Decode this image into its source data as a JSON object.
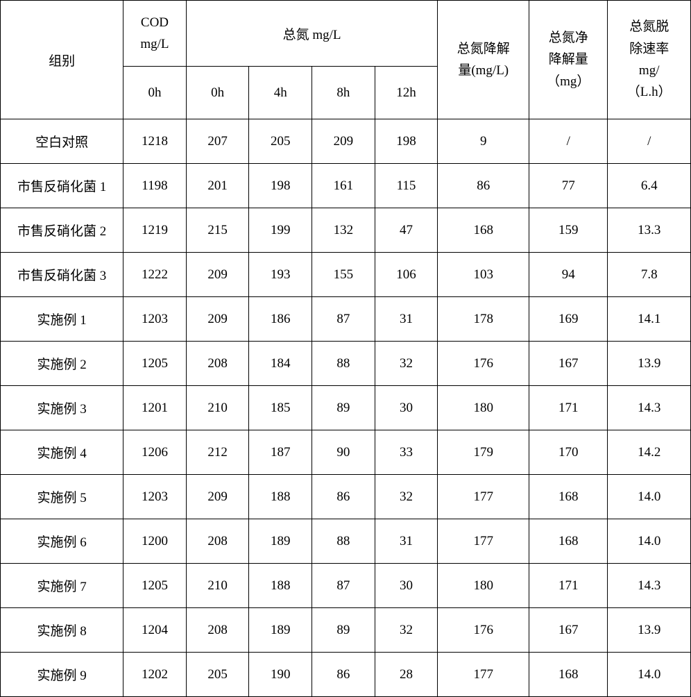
{
  "headers": {
    "group": "组别",
    "cod": "COD\nmg/L",
    "tn": "总氮 mg/L",
    "t0": "0h",
    "t0b": "0h",
    "t4": "4h",
    "t8": "8h",
    "t12": "12h",
    "degradation": "总氮降解\n量(mg/L)",
    "net_degradation": "总氮净\n降解量\n（mg）",
    "removal_rate": "总氮脱\n除速率\nmg/\n（L.h）"
  },
  "rows": [
    {
      "group": "空白对照",
      "cod": "1218",
      "tn0": "207",
      "tn4": "205",
      "tn8": "209",
      "tn12": "198",
      "deg": "9",
      "net": "/",
      "rate": "/"
    },
    {
      "group": "市售反硝化菌 1",
      "cod": "1198",
      "tn0": "201",
      "tn4": "198",
      "tn8": "161",
      "tn12": "115",
      "deg": "86",
      "net": "77",
      "rate": "6.4"
    },
    {
      "group": "市售反硝化菌 2",
      "cod": "1219",
      "tn0": "215",
      "tn4": "199",
      "tn8": "132",
      "tn12": "47",
      "deg": "168",
      "net": "159",
      "rate": "13.3"
    },
    {
      "group": "市售反硝化菌 3",
      "cod": "1222",
      "tn0": "209",
      "tn4": "193",
      "tn8": "155",
      "tn12": "106",
      "deg": "103",
      "net": "94",
      "rate": "7.8"
    },
    {
      "group": "实施例 1",
      "cod": "1203",
      "tn0": "209",
      "tn4": "186",
      "tn8": "87",
      "tn12": "31",
      "deg": "178",
      "net": "169",
      "rate": "14.1"
    },
    {
      "group": "实施例 2",
      "cod": "1205",
      "tn0": "208",
      "tn4": "184",
      "tn8": "88",
      "tn12": "32",
      "deg": "176",
      "net": "167",
      "rate": "13.9"
    },
    {
      "group": "实施例 3",
      "cod": "1201",
      "tn0": "210",
      "tn4": "185",
      "tn8": "89",
      "tn12": "30",
      "deg": "180",
      "net": "171",
      "rate": "14.3"
    },
    {
      "group": "实施例 4",
      "cod": "1206",
      "tn0": "212",
      "tn4": "187",
      "tn8": "90",
      "tn12": "33",
      "deg": "179",
      "net": "170",
      "rate": "14.2"
    },
    {
      "group": "实施例 5",
      "cod": "1203",
      "tn0": "209",
      "tn4": "188",
      "tn8": "86",
      "tn12": "32",
      "deg": "177",
      "net": "168",
      "rate": "14.0"
    },
    {
      "group": "实施例 6",
      "cod": "1200",
      "tn0": "208",
      "tn4": "189",
      "tn8": "88",
      "tn12": "31",
      "deg": "177",
      "net": "168",
      "rate": "14.0"
    },
    {
      "group": "实施例 7",
      "cod": "1205",
      "tn0": "210",
      "tn4": "188",
      "tn8": "87",
      "tn12": "30",
      "deg": "180",
      "net": "171",
      "rate": "14.3"
    },
    {
      "group": "实施例 8",
      "cod": "1204",
      "tn0": "208",
      "tn4": "189",
      "tn8": "89",
      "tn12": "32",
      "deg": "176",
      "net": "167",
      "rate": "13.9"
    },
    {
      "group": "实施例 9",
      "cod": "1202",
      "tn0": "205",
      "tn4": "190",
      "tn8": "86",
      "tn12": "28",
      "deg": "177",
      "net": "168",
      "rate": "14.0"
    }
  ],
  "style": {
    "font_family": "SimSun",
    "cell_font_size_pt": 14,
    "border_color": "#000000",
    "background_color": "#ffffff",
    "text_color": "#000000"
  }
}
